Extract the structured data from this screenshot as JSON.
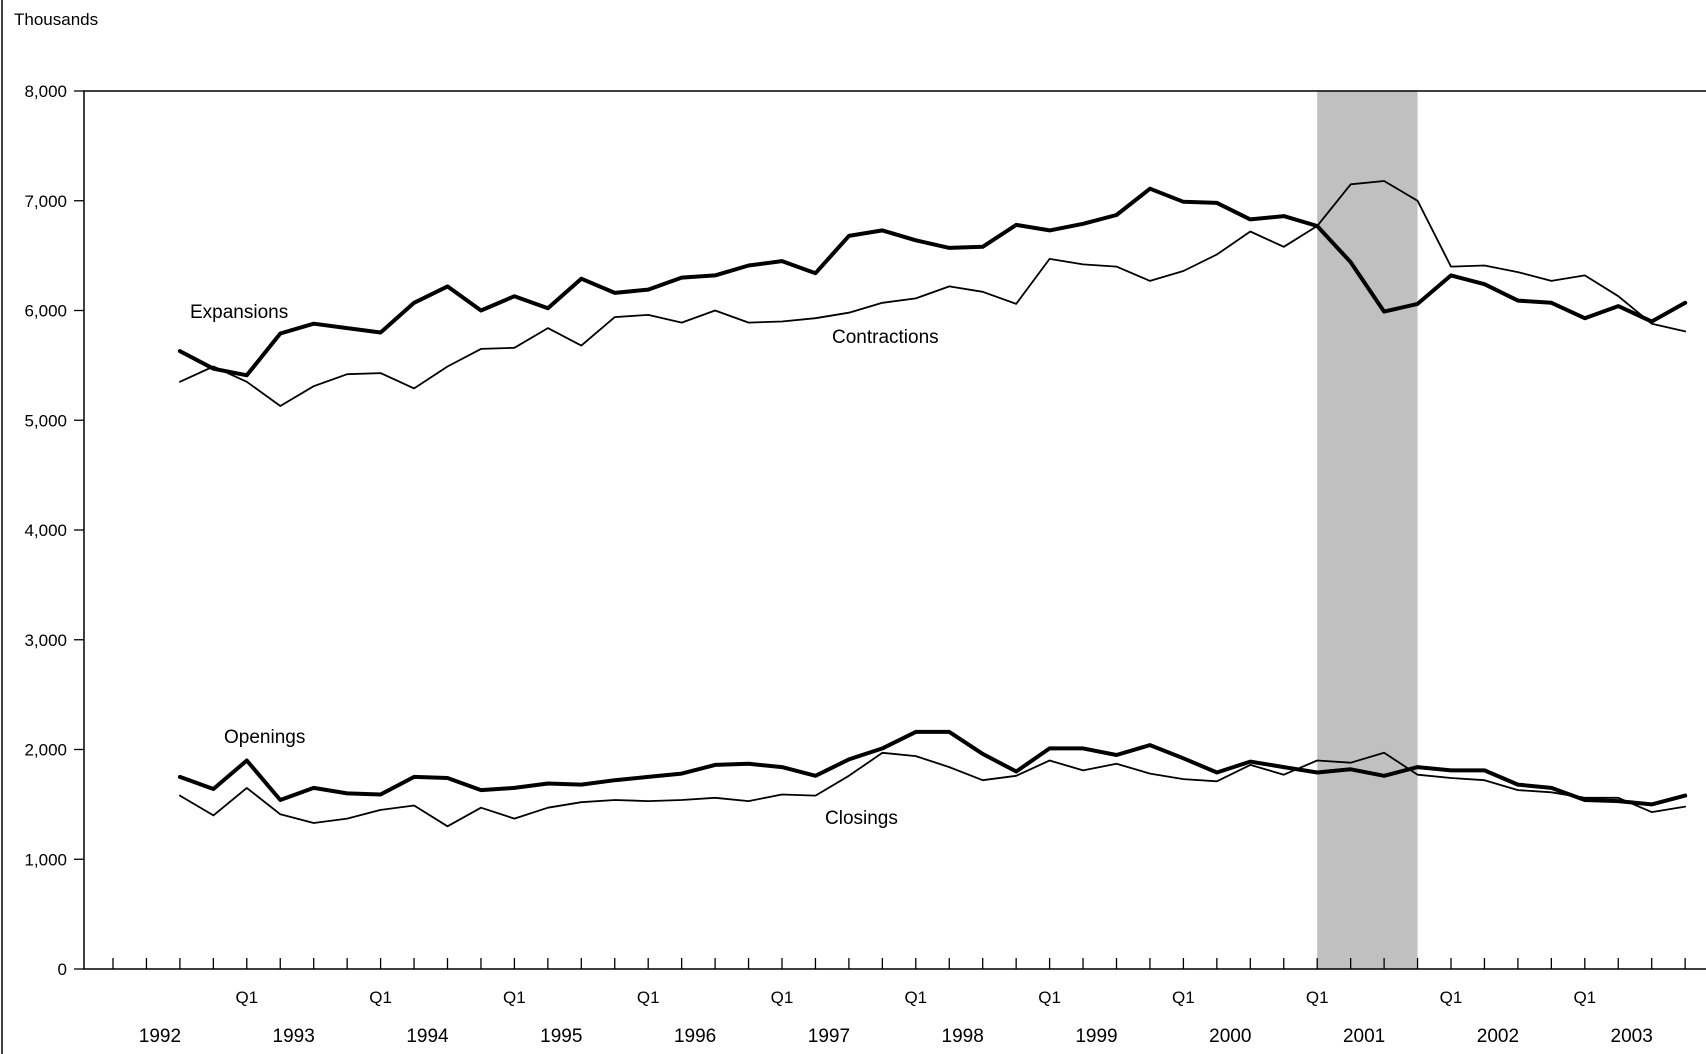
{
  "chart_data": {
    "type": "line",
    "title": "",
    "unit_label": "Thousands",
    "xlabel": "",
    "ylabel": "",
    "ylim": [
      0,
      8000
    ],
    "yticks": [
      0,
      1000,
      2000,
      3000,
      4000,
      5000,
      6000,
      7000,
      8000
    ],
    "ytick_labels": [
      "0",
      "1,000",
      "2,000",
      "3,000",
      "4,000",
      "5,000",
      "6,000",
      "7,000",
      "8,000"
    ],
    "x_quarter_label": "Q1",
    "years": [
      "1992",
      "1993",
      "1994",
      "1995",
      "1996",
      "1997",
      "1998",
      "1999",
      "2000",
      "2001",
      "2002",
      "2003"
    ],
    "x_start": "1992 Q3",
    "frequency": "quarterly",
    "recession": {
      "start": "2001 Q1",
      "end": "2001 Q4",
      "color": "#c0c0c0"
    },
    "series": [
      {
        "name": "Expansions",
        "weight": "bold",
        "values": [
          5630,
          5470,
          5410,
          5790,
          5880,
          5840,
          5800,
          6070,
          6220,
          6000,
          6130,
          6020,
          6290,
          6160,
          6190,
          6300,
          6320,
          6410,
          6450,
          6340,
          6680,
          6730,
          6640,
          6570,
          6580,
          6780,
          6730,
          6790,
          6870,
          7110,
          6990,
          6980,
          6830,
          6860,
          6770,
          6440,
          5990,
          6060,
          6320,
          6240,
          6090,
          6070,
          5930,
          6040,
          5900,
          6070
        ]
      },
      {
        "name": "Contractions",
        "weight": "thin",
        "values": [
          5350,
          5490,
          5350,
          5130,
          5310,
          5420,
          5430,
          5290,
          5490,
          5650,
          5660,
          5840,
          5680,
          5940,
          5960,
          5890,
          6000,
          5890,
          5900,
          5930,
          5980,
          6070,
          6110,
          6220,
          6170,
          6060,
          6470,
          6420,
          6400,
          6270,
          6360,
          6510,
          6720,
          6580,
          6770,
          7150,
          7180,
          7000,
          6400,
          6410,
          6350,
          6270,
          6320,
          6130,
          5880,
          5810
        ]
      },
      {
        "name": "Openings",
        "weight": "bold",
        "values": [
          1750,
          1640,
          1900,
          1540,
          1650,
          1600,
          1590,
          1750,
          1740,
          1630,
          1650,
          1690,
          1680,
          1720,
          1750,
          1780,
          1860,
          1870,
          1840,
          1760,
          1910,
          2010,
          2160,
          2160,
          1960,
          1800,
          2010,
          2010,
          1950,
          2040,
          1920,
          1790,
          1890,
          1840,
          1790,
          1820,
          1760,
          1840,
          1810,
          1810,
          1680,
          1650,
          1540,
          1530,
          1500,
          1580
        ]
      },
      {
        "name": "Closings",
        "weight": "thin",
        "values": [
          1580,
          1400,
          1650,
          1410,
          1330,
          1370,
          1450,
          1490,
          1300,
          1470,
          1370,
          1470,
          1520,
          1540,
          1530,
          1540,
          1560,
          1530,
          1590,
          1580,
          1760,
          1970,
          1940,
          1840,
          1720,
          1760,
          1900,
          1810,
          1870,
          1780,
          1730,
          1710,
          1860,
          1770,
          1900,
          1880,
          1970,
          1770,
          1740,
          1720,
          1630,
          1610,
          1560,
          1560,
          1430,
          1480
        ]
      }
    ]
  }
}
